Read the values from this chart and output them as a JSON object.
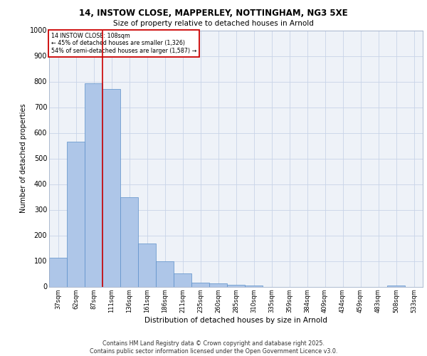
{
  "title1": "14, INSTOW CLOSE, MAPPERLEY, NOTTINGHAM, NG3 5XE",
  "title2": "Size of property relative to detached houses in Arnold",
  "xlabel": "Distribution of detached houses by size in Arnold",
  "ylabel": "Number of detached properties",
  "categories": [
    "37sqm",
    "62sqm",
    "87sqm",
    "111sqm",
    "136sqm",
    "161sqm",
    "186sqm",
    "211sqm",
    "235sqm",
    "260sqm",
    "285sqm",
    "310sqm",
    "335sqm",
    "359sqm",
    "384sqm",
    "409sqm",
    "434sqm",
    "459sqm",
    "483sqm",
    "508sqm",
    "533sqm"
  ],
  "values": [
    112,
    565,
    793,
    770,
    350,
    168,
    100,
    52,
    15,
    13,
    8,
    5,
    0,
    0,
    0,
    0,
    0,
    0,
    0,
    5,
    0
  ],
  "bar_color": "#aec6e8",
  "bar_edge_color": "#5b8fc9",
  "vline_color": "#cc0000",
  "vline_pos": 2.5,
  "annotation_title": "14 INSTOW CLOSE: 108sqm",
  "annotation_line1": "← 45% of detached houses are smaller (1,326)",
  "annotation_line2": "54% of semi-detached houses are larger (1,587) →",
  "annotation_box_color": "#cc0000",
  "annotation_bg_color": "#ffffff",
  "ylim": [
    0,
    1000
  ],
  "yticks": [
    0,
    100,
    200,
    300,
    400,
    500,
    600,
    700,
    800,
    900,
    1000
  ],
  "grid_color": "#c8d4e8",
  "bg_color": "#eef2f8",
  "footer": "Contains HM Land Registry data © Crown copyright and database right 2025.\nContains public sector information licensed under the Open Government Licence v3.0."
}
